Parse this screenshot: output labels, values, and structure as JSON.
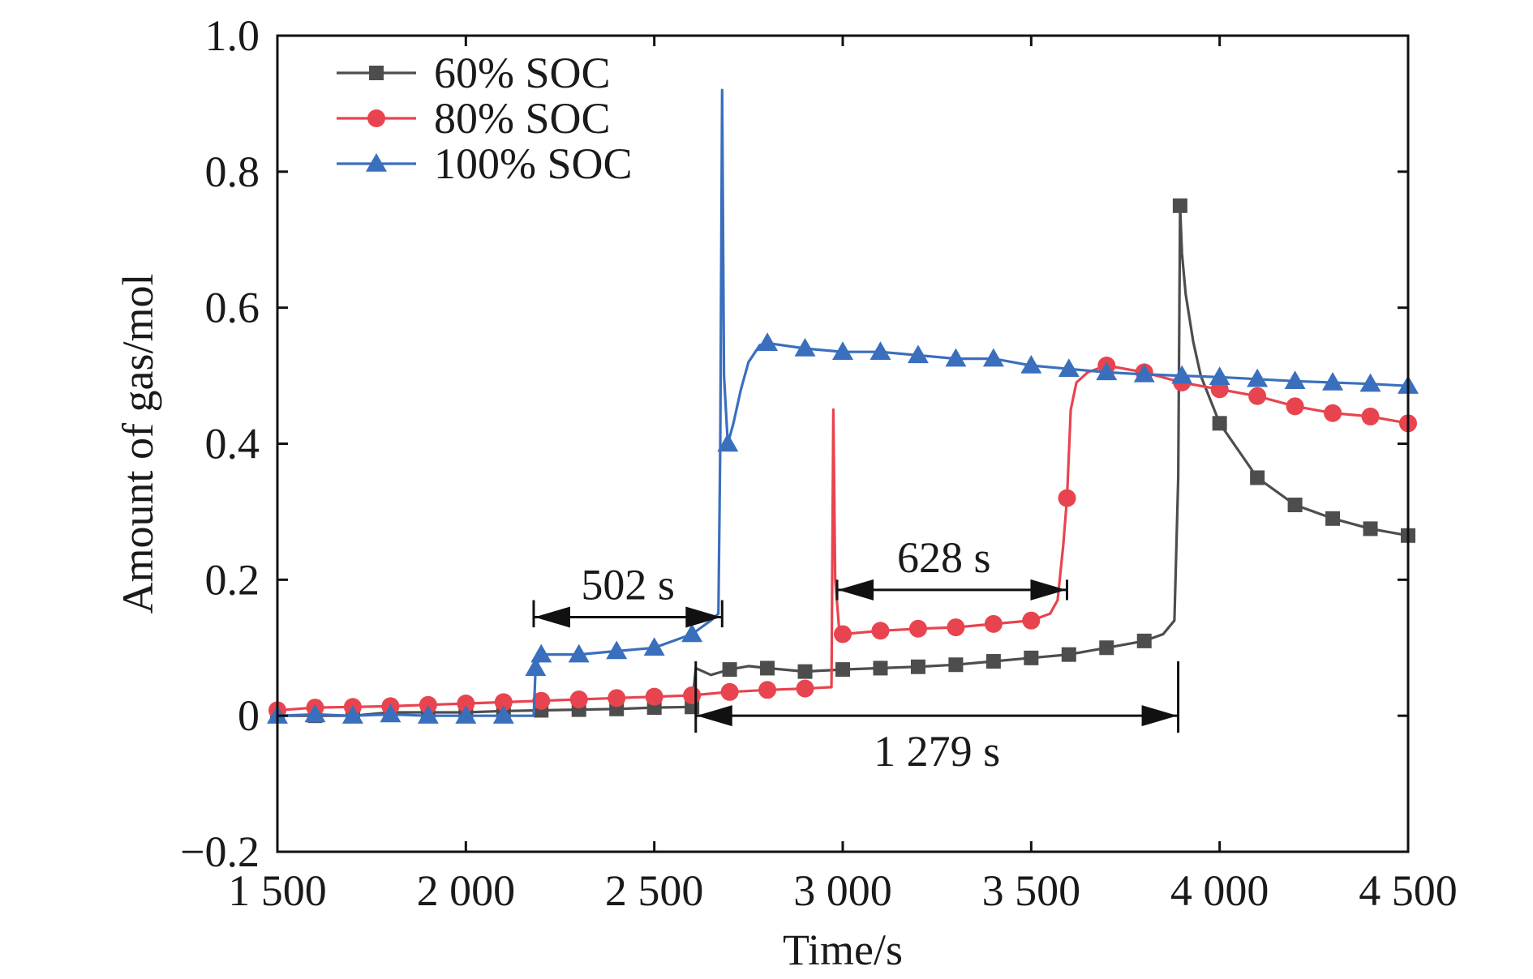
{
  "chart_data": {
    "type": "line",
    "xlabel": "Time/s",
    "ylabel": "Amount of gas/mol",
    "xlim": [
      1500,
      4500
    ],
    "ylim": [
      -0.2,
      1.0
    ],
    "x_ticks": [
      1500,
      2000,
      2500,
      3000,
      3500,
      4000,
      4500
    ],
    "x_tick_labels": [
      "1 500",
      "2 000",
      "2 500",
      "3 000",
      "3 500",
      "4 000",
      "4 500"
    ],
    "y_ticks": [
      -0.2,
      0,
      0.2,
      0.4,
      0.6,
      0.8,
      1.0
    ],
    "y_tick_labels": [
      "−0.2",
      "0",
      "0.2",
      "0.4",
      "0.6",
      "0.8",
      "1.0"
    ],
    "grid": false,
    "legend_position": "top-left",
    "series": [
      {
        "name": "60% SOC",
        "color": "#4d4d4d",
        "marker": "square",
        "x": [
          1500,
          1600,
          1700,
          1800,
          1900,
          2000,
          2100,
          2200,
          2300,
          2400,
          2500,
          2600,
          2610,
          2650,
          2700,
          2750,
          2800,
          2900,
          3000,
          3100,
          3200,
          3300,
          3400,
          3500,
          3600,
          3700,
          3800,
          3850,
          3880,
          3890,
          3895,
          3900,
          3910,
          3930,
          3950,
          4000,
          4050,
          4100,
          4150,
          4200,
          4250,
          4300,
          4400,
          4500
        ],
        "y": [
          0.0,
          0.0,
          0.0,
          0.005,
          0.005,
          0.005,
          0.007,
          0.008,
          0.009,
          0.01,
          0.012,
          0.013,
          0.07,
          0.06,
          0.068,
          0.073,
          0.07,
          0.065,
          0.068,
          0.07,
          0.072,
          0.075,
          0.08,
          0.085,
          0.09,
          0.1,
          0.11,
          0.12,
          0.14,
          0.35,
          0.75,
          0.68,
          0.62,
          0.55,
          0.5,
          0.43,
          0.39,
          0.35,
          0.33,
          0.31,
          0.3,
          0.29,
          0.275,
          0.265
        ],
        "markers_at": [
          1500,
          1600,
          1700,
          1800,
          1900,
          2000,
          2100,
          2200,
          2300,
          2400,
          2500,
          2600,
          2700,
          2800,
          2900,
          3000,
          3100,
          3200,
          3300,
          3400,
          3500,
          3600,
          3700,
          3800,
          3895,
          4000,
          4100,
          4200,
          4300,
          4400,
          4500
        ]
      },
      {
        "name": "80% SOC",
        "color": "#e8444f",
        "marker": "circle",
        "x": [
          1500,
          1600,
          1700,
          1800,
          1900,
          2000,
          2100,
          2200,
          2300,
          2400,
          2500,
          2600,
          2700,
          2800,
          2900,
          2970,
          2975,
          2980,
          2990,
          3000,
          3100,
          3200,
          3300,
          3400,
          3500,
          3550,
          3570,
          3585,
          3595,
          3605,
          3620,
          3650,
          3700,
          3800,
          3900,
          4000,
          4100,
          4200,
          4300,
          4400,
          4500
        ],
        "y": [
          0.008,
          0.012,
          0.013,
          0.014,
          0.016,
          0.018,
          0.02,
          0.022,
          0.024,
          0.026,
          0.028,
          0.03,
          0.035,
          0.038,
          0.04,
          0.042,
          0.45,
          0.2,
          0.13,
          0.12,
          0.125,
          0.128,
          0.13,
          0.135,
          0.14,
          0.15,
          0.17,
          0.25,
          0.32,
          0.45,
          0.49,
          0.505,
          0.515,
          0.505,
          0.49,
          0.48,
          0.47,
          0.455,
          0.445,
          0.44,
          0.43
        ],
        "markers_at": [
          1500,
          1600,
          1700,
          1800,
          1900,
          2000,
          2100,
          2200,
          2300,
          2400,
          2500,
          2600,
          2700,
          2800,
          2900,
          3000,
          3100,
          3200,
          3300,
          3400,
          3500,
          3595,
          3700,
          3800,
          3900,
          4000,
          4100,
          4200,
          4300,
          4400,
          4500
        ]
      },
      {
        "name": "100% SOC",
        "color": "#3a6fbe",
        "marker": "triangle",
        "x": [
          1500,
          1600,
          1700,
          1800,
          1900,
          2000,
          2100,
          2180,
          2185,
          2200,
          2300,
          2400,
          2500,
          2600,
          2650,
          2670,
          2675,
          2680,
          2685,
          2695,
          2710,
          2730,
          2750,
          2780,
          2800,
          2900,
          3000,
          3100,
          3200,
          3300,
          3400,
          3500,
          3600,
          3700,
          3800,
          3900,
          4000,
          4100,
          4200,
          4300,
          4400,
          4500
        ],
        "y": [
          0.0,
          0.002,
          0.0,
          0.002,
          0.0,
          0.0,
          0.0,
          0.0,
          0.07,
          0.09,
          0.09,
          0.095,
          0.1,
          0.12,
          0.14,
          0.15,
          0.4,
          0.92,
          0.5,
          0.4,
          0.43,
          0.48,
          0.52,
          0.545,
          0.548,
          0.54,
          0.535,
          0.535,
          0.53,
          0.525,
          0.525,
          0.515,
          0.51,
          0.505,
          0.502,
          0.5,
          0.498,
          0.495,
          0.492,
          0.49,
          0.488,
          0.485
        ],
        "markers_at": [
          1500,
          1600,
          1700,
          1800,
          1900,
          2000,
          2100,
          2185,
          2200,
          2300,
          2400,
          2500,
          2600,
          2695,
          2800,
          2900,
          3000,
          3100,
          3200,
          3300,
          3400,
          3500,
          3600,
          3700,
          3800,
          3900,
          4000,
          4100,
          4200,
          4300,
          4400,
          4500
        ]
      }
    ],
    "annotations": [
      {
        "label": "502 s",
        "x_start": 2180,
        "x_end": 2680,
        "y": 0.145,
        "bracket_y_range": [
          0.13,
          0.17
        ]
      },
      {
        "label": "628 s",
        "x_start": 2985,
        "x_end": 3595,
        "y": 0.185,
        "bracket_y_range": [
          0.17,
          0.2
        ]
      },
      {
        "label": "1 279 s",
        "x_start": 2610,
        "x_end": 3890,
        "y": 0.0,
        "bracket_y_range": [
          -0.025,
          0.08
        ]
      }
    ]
  }
}
